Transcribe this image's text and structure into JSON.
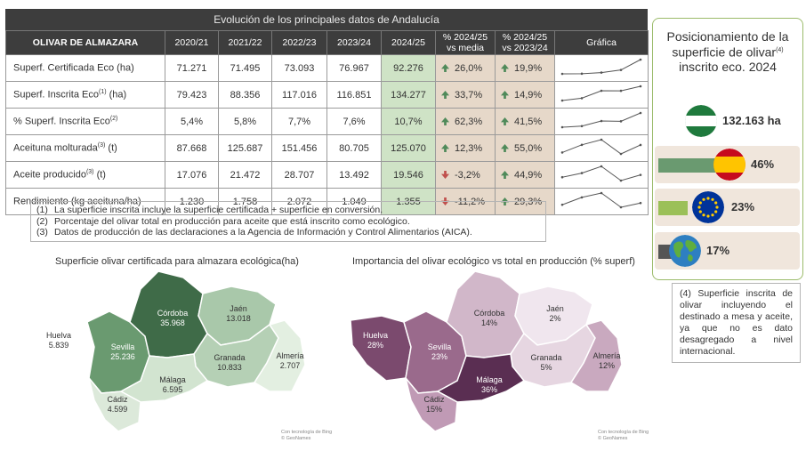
{
  "table": {
    "title": "Evolución de los principales datos de Andalucía",
    "headers": [
      "OLIVAR DE ALMAZARA",
      "2020/21",
      "2021/22",
      "2022/23",
      "2023/24",
      "2024/25",
      "% 2024/25 vs media",
      "% 2024/25 vs 2023/24",
      "Gráfica"
    ],
    "rows": [
      {
        "label": "Superf. Certificada Eco (ha)",
        "sup": "",
        "unit": "",
        "values": [
          "71.271",
          "71.495",
          "73.093",
          "76.967",
          "92.276"
        ],
        "vs_media": "26,0%",
        "vs_prev": "19,9%",
        "trend_media": "up",
        "trend_prev": "up",
        "series": [
          71271,
          71495,
          73093,
          76967,
          92276
        ]
      },
      {
        "label": "Superf. Inscrita Eco",
        "sup": "(1)",
        "unit": " (ha)",
        "values": [
          "79.423",
          "88.356",
          "117.016",
          "116.851",
          "134.277"
        ],
        "vs_media": "33,7%",
        "vs_prev": "14,9%",
        "trend_media": "up",
        "trend_prev": "up",
        "series": [
          79423,
          88356,
          117016,
          116851,
          134277
        ]
      },
      {
        "label": "% Superf. Inscrita Eco",
        "sup": "(2)",
        "unit": "",
        "values": [
          "5,4%",
          "5,8%",
          "7,7%",
          "7,6%",
          "10,7%"
        ],
        "vs_media": "62,3%",
        "vs_prev": "41,5%",
        "trend_media": "up",
        "trend_prev": "up",
        "series": [
          5.4,
          5.8,
          7.7,
          7.6,
          10.7
        ]
      },
      {
        "label": "Aceituna molturada",
        "sup": "(3)",
        "unit": " (t)",
        "values": [
          "87.668",
          "125.687",
          "151.456",
          "80.705",
          "125.070"
        ],
        "vs_media": "12,3%",
        "vs_prev": "55,0%",
        "trend_media": "up",
        "trend_prev": "up",
        "series": [
          87668,
          125687,
          151456,
          80705,
          125070
        ]
      },
      {
        "label": "Aceite producido",
        "sup": "(3)",
        "unit": " (t)",
        "values": [
          "17.076",
          "21.472",
          "28.707",
          "13.492",
          "19.546"
        ],
        "vs_media": "-3,2%",
        "vs_prev": "44,9%",
        "trend_media": "down",
        "trend_prev": "up",
        "series": [
          17076,
          21472,
          28707,
          13492,
          19546
        ]
      },
      {
        "label": "Rendimiento (kg aceituna/ha)",
        "sup": "",
        "unit": "",
        "values": [
          "1.230",
          "1.758",
          "2.072",
          "1.049",
          "1.355"
        ],
        "vs_media": "-11,2%",
        "vs_prev": "29,3%",
        "trend_media": "down",
        "trend_prev": "up",
        "series": [
          1230,
          1758,
          2072,
          1049,
          1355
        ]
      }
    ]
  },
  "notes": [
    {
      "n": "(1)",
      "text": "La superficie inscrita incluye la superficie certificada + superficie en conversión."
    },
    {
      "n": "(2)",
      "text": "Porcentaje del olivar total en producción para aceite que está inscrito como ecológico."
    },
    {
      "n": "(3)",
      "text": "Datos de producción de las declaraciones a la Agencia de Información y Control Alimentarios (AICA)."
    }
  ],
  "map1": {
    "title": "Superficie olivar certificada para almazara ecológica(ha)",
    "regions": [
      {
        "name": "Huelva",
        "value": "5.839",
        "color": "#ffffff"
      },
      {
        "name": "Sevilla",
        "value": "25.236",
        "color": "#6a9a70"
      },
      {
        "name": "Córdoba",
        "value": "35.968",
        "color": "#3f6b48"
      },
      {
        "name": "Jaén",
        "value": "13.018",
        "color": "#a9c8aa"
      },
      {
        "name": "Granada",
        "value": "10.833",
        "color": "#b5d0b5"
      },
      {
        "name": "Almería",
        "value": "2.707",
        "color": "#e3efe1"
      },
      {
        "name": "Málaga",
        "value": "6.595",
        "color": "#d2e4d0"
      },
      {
        "name": "Cádiz",
        "value": "4.599",
        "color": "#dce9da"
      }
    ],
    "credit": [
      "Con tecnología de Bing",
      "© GeoNames"
    ]
  },
  "map2": {
    "title": "Importancia del olivar ecológico vs total en producción (% superf)",
    "regions": [
      {
        "name": "Huelva",
        "value": "28%",
        "color": "#7b4a6e"
      },
      {
        "name": "Sevilla",
        "value": "23%",
        "color": "#9a6a8c"
      },
      {
        "name": "Córdoba",
        "value": "14%",
        "color": "#d1b7c9"
      },
      {
        "name": "Jaén",
        "value": "2%",
        "color": "#f0e6ee"
      },
      {
        "name": "Granada",
        "value": "5%",
        "color": "#e6d6e1"
      },
      {
        "name": "Almería",
        "value": "12%",
        "color": "#c9a9bf"
      },
      {
        "name": "Málaga",
        "value": "36%",
        "color": "#5a2e52"
      },
      {
        "name": "Cádiz",
        "value": "15%",
        "color": "#c09ab5"
      }
    ],
    "credit": [
      "Con tecnología de Bing",
      "© GeoNames"
    ]
  },
  "panel": {
    "title": "Posicionamiento de la superficie de olivar",
    "title_sup": "(4)",
    "title_tail": "inscrito eco. 2024",
    "ranks": [
      {
        "flag": "andalucia-flag-icon",
        "value": "132.163 ha",
        "bar_fraction": 0,
        "bar_color": "#6a9a70"
      },
      {
        "flag": "spain-flag-icon",
        "value": "46%",
        "bar_fraction": 0.46,
        "bar_color": "#6a9a70"
      },
      {
        "flag": "eu-flag-icon",
        "value": "23%",
        "bar_fraction": 0.23,
        "bar_color": "#9bc058"
      },
      {
        "flag": "globe-icon",
        "value": "17%",
        "bar_fraction": 0.17,
        "bar_color": "#555555"
      }
    ]
  },
  "note4": "(4) Superficie inscrita de olivar incluyendo el destinado a mesa y aceite, ya que no es dato desagregado a nivel internacional.",
  "colors": {
    "highlight": "#cfe3c6",
    "pct_bg": "#e6d8c9",
    "header_bg": "#3d3d3d",
    "up": "#4f8a5a",
    "down": "#c0504d"
  }
}
